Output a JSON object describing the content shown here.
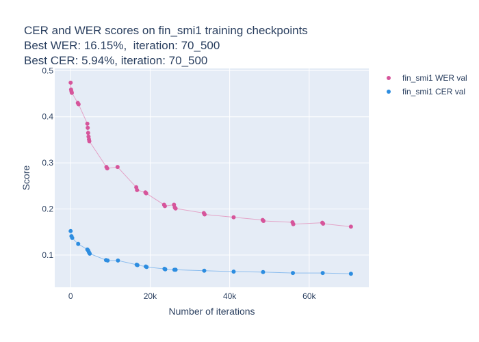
{
  "chart_data": {
    "type": "scatter",
    "title_lines": [
      "CER and WER scores on fin_smi1 training checkpoints",
      "Best WER: 16.15%,  iteration: 70_500",
      "Best CER: 5.94%, iteration: 70_500"
    ],
    "xlabel": "Number of iterations",
    "ylabel": "Score",
    "xlim": [
      -4000,
      75000
    ],
    "ylim": [
      0.03,
      0.505
    ],
    "x_ticks": [
      {
        "value": 0,
        "label": "0"
      },
      {
        "value": 20000,
        "label": "20k"
      },
      {
        "value": 40000,
        "label": "40k"
      },
      {
        "value": 60000,
        "label": "60k"
      }
    ],
    "y_ticks": [
      {
        "value": 0.1,
        "label": "0.1"
      },
      {
        "value": 0.2,
        "label": "0.2"
      },
      {
        "value": 0.3,
        "label": "0.3"
      },
      {
        "value": 0.4,
        "label": "0.4"
      },
      {
        "value": 0.5,
        "label": "0.5"
      }
    ],
    "grid": true,
    "legend_position": "top-right",
    "series": [
      {
        "name": "fin_smi1 WER val",
        "color": "#d6559b",
        "line_color": "#e4a3c7",
        "x": [
          0,
          100,
          200,
          300,
          1800,
          2000,
          4200,
          4300,
          4400,
          4500,
          4600,
          4700,
          9000,
          9200,
          11800,
          16500,
          16700,
          18800,
          19000,
          23500,
          23700,
          26000,
          26200,
          26400,
          33500,
          33700,
          41000,
          48300,
          48500,
          55800,
          56000,
          63300,
          63500,
          70500
        ],
        "y": [
          0.474,
          0.459,
          0.455,
          0.452,
          0.43,
          0.427,
          0.385,
          0.376,
          0.365,
          0.357,
          0.351,
          0.347,
          0.291,
          0.288,
          0.291,
          0.247,
          0.241,
          0.236,
          0.234,
          0.209,
          0.206,
          0.209,
          0.203,
          0.201,
          0.191,
          0.188,
          0.182,
          0.176,
          0.174,
          0.171,
          0.167,
          0.17,
          0.168,
          0.1615
        ]
      },
      {
        "name": "fin_smi1 CER val",
        "color": "#2d8de0",
        "line_color": "#8cbdee",
        "x": [
          0,
          200,
          400,
          1900,
          4200,
          4400,
          4600,
          4800,
          8900,
          9300,
          11900,
          16600,
          16800,
          18900,
          19100,
          23600,
          23800,
          26100,
          26400,
          33600,
          41000,
          48400,
          55900,
          63400,
          70500
        ],
        "y": [
          0.152,
          0.141,
          0.137,
          0.124,
          0.112,
          0.11,
          0.106,
          0.103,
          0.089,
          0.088,
          0.088,
          0.079,
          0.078,
          0.075,
          0.074,
          0.07,
          0.069,
          0.068,
          0.068,
          0.066,
          0.064,
          0.063,
          0.061,
          0.061,
          0.0594
        ]
      }
    ]
  }
}
